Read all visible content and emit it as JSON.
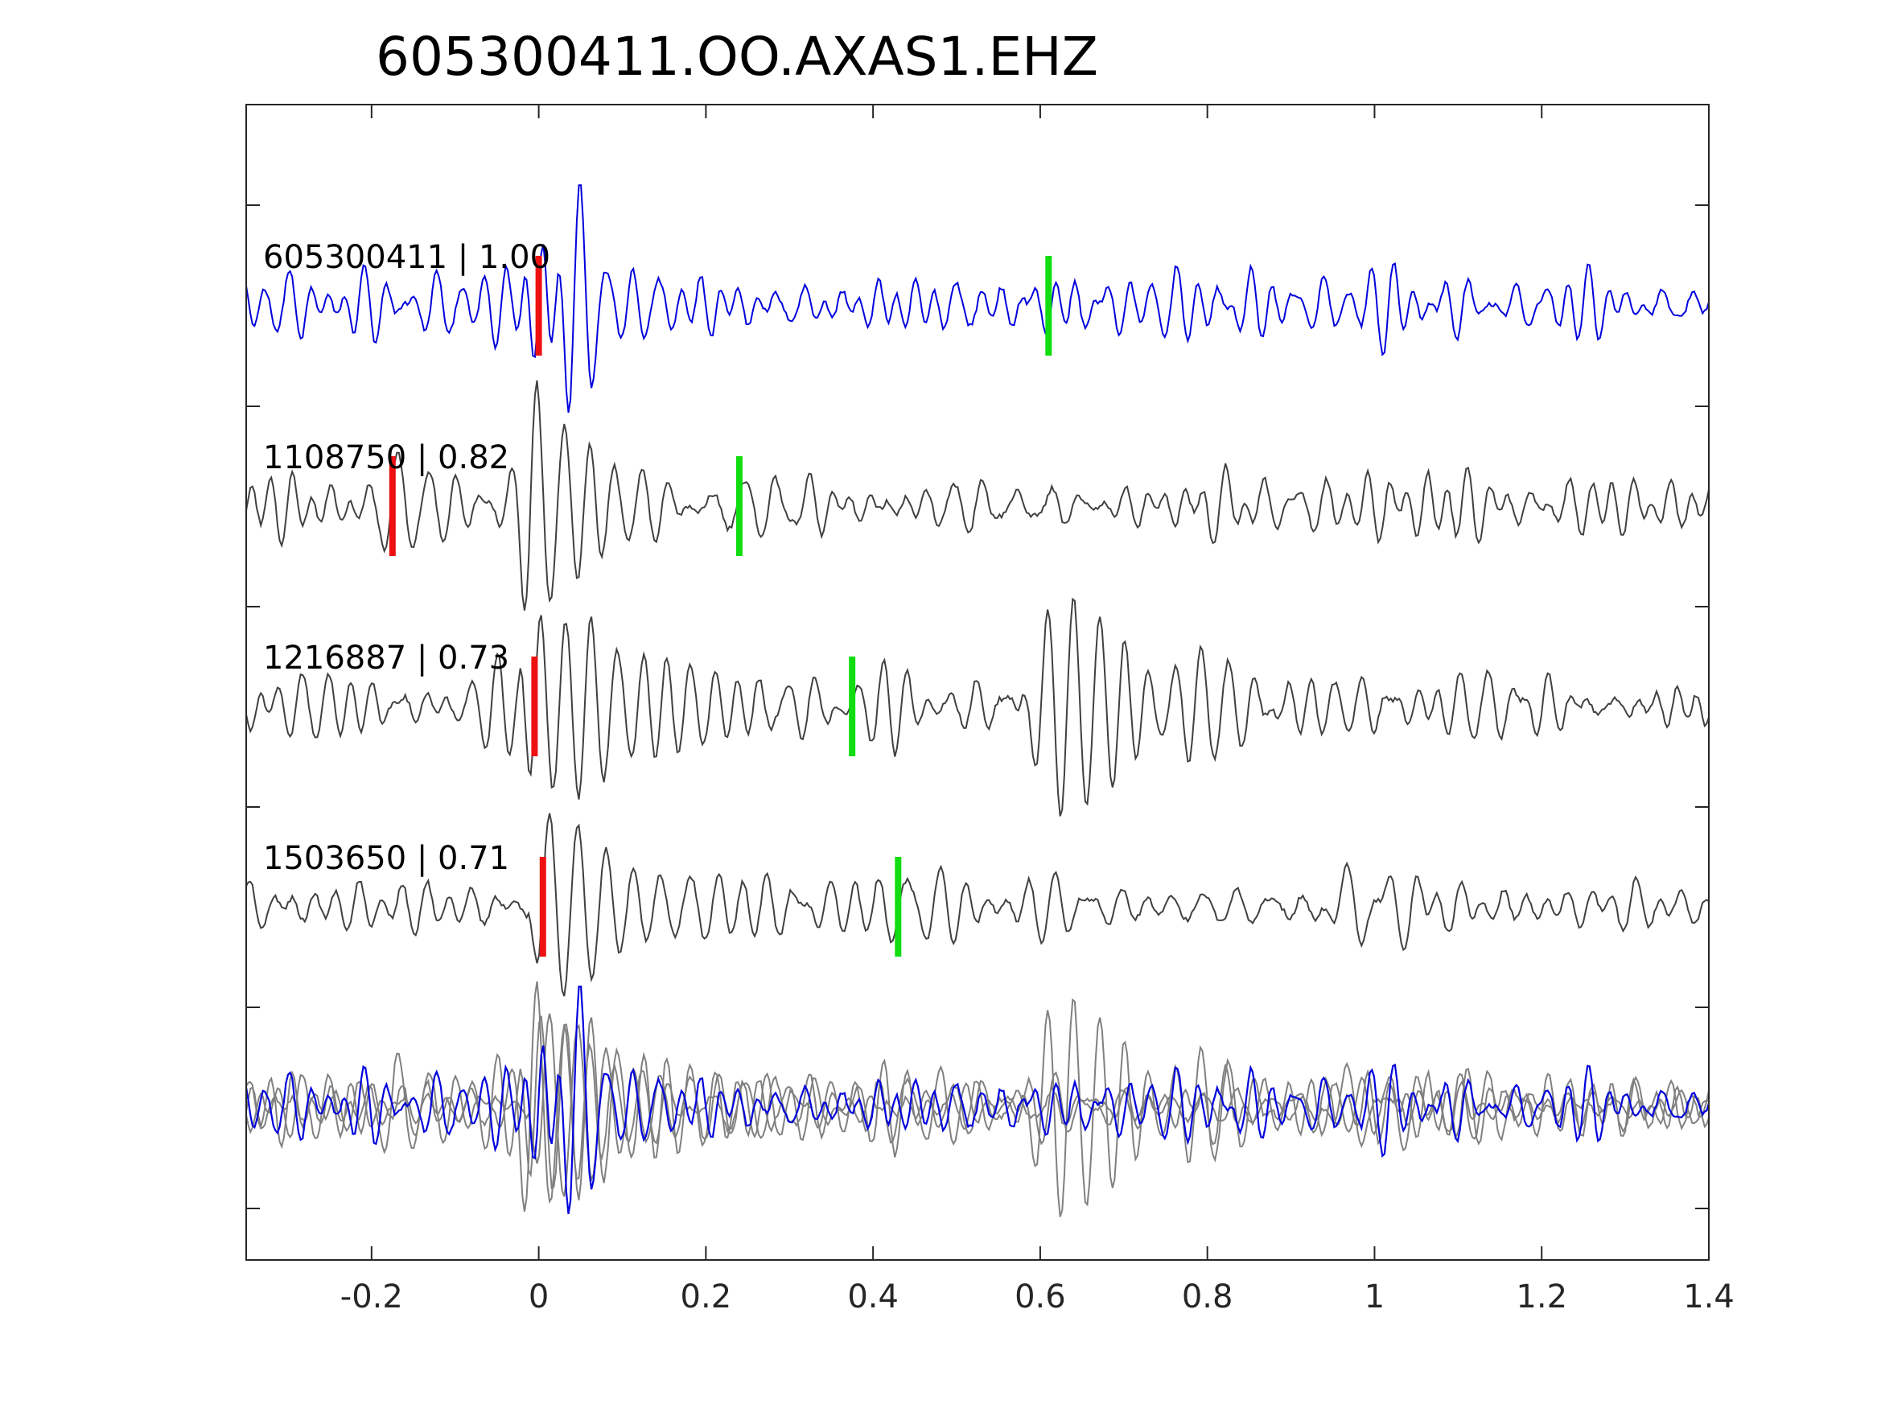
{
  "chart_data": {
    "type": "line",
    "title": "605300411.OO.AXAS1.EHZ",
    "xlabel": "",
    "ylabel": "",
    "xlim": [
      -0.35,
      1.4
    ],
    "xticks": [
      "-0.2",
      "0",
      "0.2",
      "0.4",
      "0.6",
      "0.8",
      "1",
      "1.2",
      "1.4"
    ],
    "xtick_values": [
      -0.2,
      0,
      0.2,
      0.4,
      0.6,
      0.8,
      1,
      1.2,
      1.4
    ],
    "grid": false,
    "legend": "none",
    "colors": {
      "primary": "#0000dd",
      "secondary": "#404040",
      "overlay": "#808080",
      "p_pick": "#ee1111",
      "s_pick": "#11dd11",
      "axes": "#262626"
    },
    "series": [
      {
        "name": "605300411",
        "label": "605300411 | 1.00",
        "correlation": 1.0,
        "p_pick": 0.0,
        "s_pick": 0.61,
        "events": [
          {
            "t": 0.0,
            "a": 0.55,
            "f": 45,
            "d": 0.06,
            "w": 0.03
          },
          {
            "t": 0.04,
            "a": 0.95,
            "f": 30,
            "d": 0.05,
            "w": 0.03
          }
        ]
      },
      {
        "name": "1108750",
        "label": "1108750 | 0.82",
        "correlation": 0.82,
        "p_pick": -0.175,
        "s_pick": 0.24,
        "events": [
          {
            "t": -0.175,
            "a": 0.5,
            "f": 30,
            "d": 0.2,
            "w": 0.02
          },
          {
            "t": -0.01,
            "a": 0.95,
            "f": 32,
            "d": 0.12,
            "w": 0.02
          },
          {
            "t": 0.24,
            "a": 0.22,
            "f": 28,
            "d": 0.3,
            "w": 0.03
          },
          {
            "t": 0.82,
            "a": 0.2,
            "f": 25,
            "d": 0.12,
            "w": 0.03
          }
        ]
      },
      {
        "name": "1216887",
        "label": "1216887 | 0.73",
        "correlation": 0.73,
        "p_pick": -0.005,
        "s_pick": 0.375,
        "events": [
          {
            "t": -0.005,
            "a": 0.95,
            "f": 33,
            "d": 0.12,
            "w": 0.02
          },
          {
            "t": 0.375,
            "a": 0.2,
            "f": 28,
            "d": 0.12,
            "w": 0.03
          },
          {
            "t": 0.6,
            "a": 0.95,
            "f": 32,
            "d": 0.22,
            "w": 0.03
          }
        ]
      },
      {
        "name": "1503650",
        "label": "1503650 | 0.71",
        "correlation": 0.71,
        "p_pick": 0.005,
        "s_pick": 0.43,
        "events": [
          {
            "t": 0.005,
            "a": 1.0,
            "f": 30,
            "d": 0.16,
            "w": 0.02
          },
          {
            "t": 0.43,
            "a": 0.2,
            "f": 28,
            "d": 0.1,
            "w": 0.03
          },
          {
            "t": 0.95,
            "a": 0.25,
            "f": 20,
            "d": 0.2,
            "w": 0.03
          }
        ]
      }
    ]
  }
}
